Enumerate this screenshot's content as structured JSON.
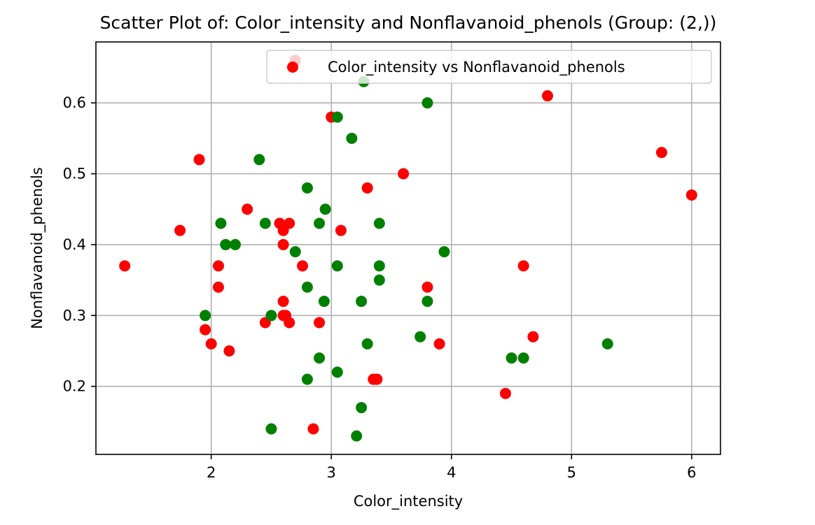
{
  "chart_data": {
    "type": "scatter",
    "title": "Scatter Plot of: Color_intensity and Nonflavanoid_phenols (Group: (2,))",
    "xlabel": "Color_intensity",
    "ylabel": "Nonflavanoid_phenols",
    "xlim": [
      1.04,
      6.24
    ],
    "ylim": [
      0.104,
      0.686
    ],
    "xticks": [
      2,
      3,
      4,
      5,
      6
    ],
    "yticks": [
      0.2,
      0.3,
      0.4,
      0.5,
      0.6
    ],
    "xtick_labels": [
      "2",
      "3",
      "4",
      "5",
      "6"
    ],
    "ytick_labels": [
      "0.2",
      "0.3",
      "0.4",
      "0.5",
      "0.6"
    ],
    "grid": true,
    "legend": {
      "placement": "upper-right",
      "entries": [
        "Color_intensity vs Nonflavanoid_phenols"
      ]
    },
    "colors": {
      "red": "#ff0000",
      "green": "#008000"
    },
    "series": [
      {
        "name": "Color_intensity vs Nonflavanoid_phenols",
        "color": "#ff0000",
        "points": [
          [
            1.28,
            0.37
          ],
          [
            1.74,
            0.42
          ],
          [
            1.9,
            0.52
          ],
          [
            1.95,
            0.28
          ],
          [
            2.0,
            0.26
          ],
          [
            2.06,
            0.37
          ],
          [
            2.06,
            0.34
          ],
          [
            2.15,
            0.25
          ],
          [
            2.3,
            0.45
          ],
          [
            2.45,
            0.29
          ],
          [
            2.57,
            0.43
          ],
          [
            2.6,
            0.42
          ],
          [
            2.65,
            0.43
          ],
          [
            2.6,
            0.4
          ],
          [
            2.6,
            0.32
          ],
          [
            2.6,
            0.3
          ],
          [
            2.62,
            0.3
          ],
          [
            2.65,
            0.29
          ],
          [
            2.7,
            0.66
          ],
          [
            2.76,
            0.37
          ],
          [
            2.85,
            0.14
          ],
          [
            2.9,
            0.29
          ],
          [
            3.0,
            0.58
          ],
          [
            3.08,
            0.42
          ],
          [
            3.3,
            0.48
          ],
          [
            3.35,
            0.21
          ],
          [
            3.38,
            0.21
          ],
          [
            3.6,
            0.5
          ],
          [
            3.8,
            0.34
          ],
          [
            3.9,
            0.26
          ],
          [
            4.45,
            0.19
          ],
          [
            4.6,
            0.37
          ],
          [
            4.68,
            0.27
          ],
          [
            4.8,
            0.61
          ],
          [
            5.75,
            0.53
          ],
          [
            6.0,
            0.47
          ]
        ]
      },
      {
        "color": "#008000",
        "points": [
          [
            1.95,
            0.3
          ],
          [
            2.08,
            0.43
          ],
          [
            2.12,
            0.4
          ],
          [
            2.2,
            0.4
          ],
          [
            2.4,
            0.52
          ],
          [
            2.45,
            0.43
          ],
          [
            2.5,
            0.3
          ],
          [
            2.5,
            0.14
          ],
          [
            2.7,
            0.39
          ],
          [
            2.8,
            0.48
          ],
          [
            2.8,
            0.34
          ],
          [
            2.8,
            0.21
          ],
          [
            2.9,
            0.43
          ],
          [
            2.9,
            0.24
          ],
          [
            2.94,
            0.32
          ],
          [
            2.95,
            0.45
          ],
          [
            3.05,
            0.58
          ],
          [
            3.05,
            0.37
          ],
          [
            3.05,
            0.22
          ],
          [
            3.17,
            0.55
          ],
          [
            3.21,
            0.13
          ],
          [
            3.25,
            0.32
          ],
          [
            3.25,
            0.17
          ],
          [
            3.27,
            0.63
          ],
          [
            3.3,
            0.26
          ],
          [
            3.4,
            0.43
          ],
          [
            3.4,
            0.37
          ],
          [
            3.4,
            0.35
          ],
          [
            3.74,
            0.27
          ],
          [
            3.8,
            0.6
          ],
          [
            3.8,
            0.32
          ],
          [
            3.94,
            0.39
          ],
          [
            4.5,
            0.24
          ],
          [
            4.6,
            0.24
          ],
          [
            5.3,
            0.26
          ]
        ]
      }
    ]
  }
}
